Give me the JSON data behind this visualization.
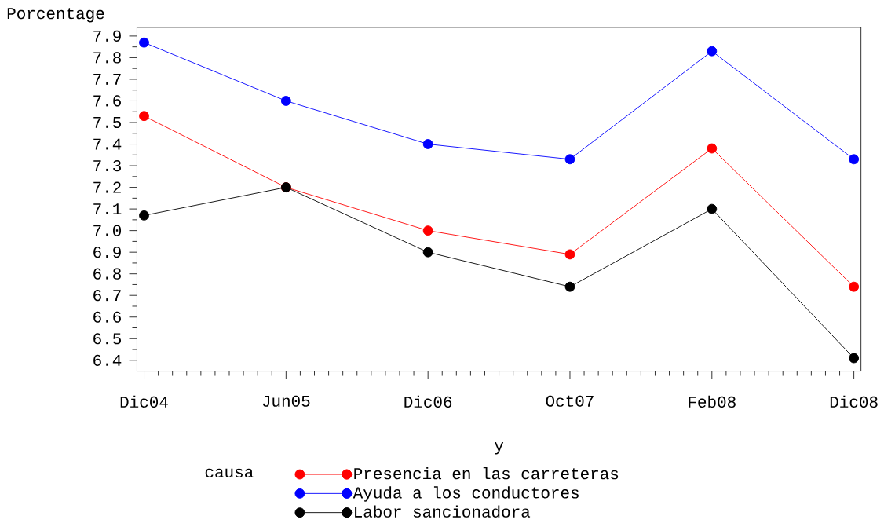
{
  "chart_data": {
    "type": "line",
    "xlabel": "y",
    "ylabel": "Porcentage",
    "legend_title": "causa",
    "categories": [
      "Dic04",
      "Jun05",
      "Dic06",
      "Oct07",
      "Feb08",
      "Dic08"
    ],
    "series": [
      {
        "name": "Presencia en las carreteras",
        "color": "#ff0000",
        "values": [
          7.53,
          7.2,
          7.0,
          6.89,
          7.38,
          6.74
        ]
      },
      {
        "name": "Ayuda a los conductores",
        "color": "#0000ff",
        "values": [
          7.87,
          7.6,
          7.4,
          7.33,
          7.83,
          7.33
        ]
      },
      {
        "name": "Labor sancionadora",
        "color": "#000000",
        "values": [
          7.07,
          7.2,
          6.9,
          6.74,
          7.1,
          6.41
        ]
      }
    ],
    "ylim": [
      6.35,
      7.94
    ],
    "yticks": [
      6.4,
      6.5,
      6.6,
      6.7,
      6.8,
      6.9,
      {
        "value": 7,
        "label": "7.0"
      },
      7.1,
      7.2,
      7.3,
      7.4,
      7.5,
      7.6,
      7.7,
      7.8,
      7.9
    ],
    "legend": "bottom",
    "marker": "circle",
    "line_style": "solid"
  }
}
